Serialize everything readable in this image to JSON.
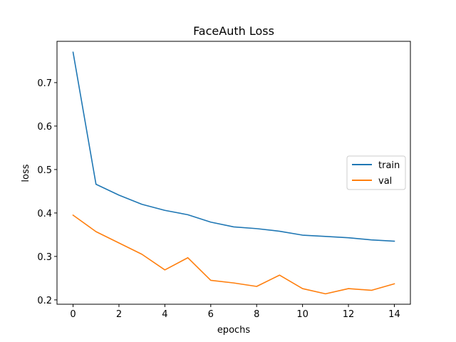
{
  "chart_data": {
    "type": "line",
    "title": "FaceAuth Loss",
    "xlabel": "epochs",
    "ylabel": "loss",
    "xlim": [
      -0.7,
      14.7
    ],
    "ylim": [
      0.19,
      0.795
    ],
    "xticks": [
      0,
      2,
      4,
      6,
      8,
      10,
      12,
      14
    ],
    "yticks": [
      0.2,
      0.3,
      0.4,
      0.5,
      0.6,
      0.7
    ],
    "grid": false,
    "legend_position": "center-right",
    "series": [
      {
        "name": "train",
        "color": "#1f77b4",
        "x": [
          0,
          1,
          2,
          3,
          4,
          5,
          6,
          7,
          8,
          9,
          10,
          11,
          12,
          13,
          14
        ],
        "y": [
          0.77,
          0.466,
          0.441,
          0.42,
          0.406,
          0.396,
          0.379,
          0.368,
          0.364,
          0.358,
          0.349,
          0.346,
          0.343,
          0.338,
          0.335
        ]
      },
      {
        "name": "val",
        "color": "#ff7f0e",
        "x": [
          0,
          1,
          2,
          3,
          4,
          5,
          6,
          7,
          8,
          9,
          10,
          11,
          12,
          13,
          14
        ],
        "y": [
          0.395,
          0.357,
          0.331,
          0.305,
          0.269,
          0.297,
          0.245,
          0.239,
          0.231,
          0.257,
          0.226,
          0.214,
          0.226,
          0.222,
          0.237
        ]
      }
    ]
  }
}
